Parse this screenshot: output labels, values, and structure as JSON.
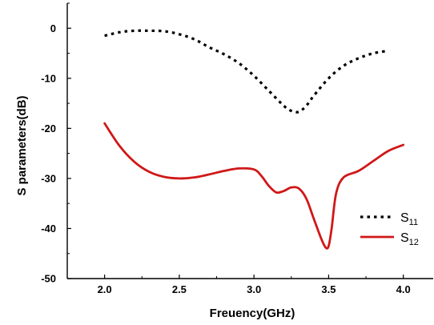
{
  "chart_data": {
    "type": "line",
    "xlabel": "Freuency(GHz)",
    "ylabel": "S parameters(dB)",
    "xlim": [
      1.75,
      4.2
    ],
    "ylim": [
      -50,
      5
    ],
    "x_ticks": [
      2.0,
      2.5,
      3.0,
      3.5,
      4.0
    ],
    "x_tick_labels": [
      "2.0",
      "2.5",
      "3.0",
      "3.5",
      "4.0"
    ],
    "y_ticks": [
      0,
      -10,
      -20,
      -30,
      -40,
      -50
    ],
    "y_tick_labels": [
      "0",
      "-10",
      "-20",
      "-30",
      "-40",
      "-50"
    ],
    "grid": false,
    "legend_position": "bottom-right",
    "series": [
      {
        "name": "S11",
        "legend_main": "S",
        "legend_sub": "11",
        "style": "dotted",
        "color": "#000000",
        "x": [
          2.0,
          2.1,
          2.2,
          2.3,
          2.4,
          2.5,
          2.6,
          2.7,
          2.8,
          2.9,
          3.0,
          3.1,
          3.2,
          3.25,
          3.3,
          3.35,
          3.4,
          3.5,
          3.6,
          3.7,
          3.8,
          3.9
        ],
        "y": [
          -1.5,
          -0.8,
          -0.5,
          -0.5,
          -0.6,
          -1.2,
          -2.2,
          -3.8,
          -5.2,
          -7.0,
          -9.5,
          -12.5,
          -15.5,
          -16.5,
          -16.7,
          -15.5,
          -13.5,
          -10.0,
          -7.5,
          -6.0,
          -5.0,
          -4.5
        ]
      },
      {
        "name": "S12",
        "legend_main": "S",
        "legend_sub": "12",
        "style": "solid",
        "color": "#d01818",
        "x": [
          2.0,
          2.1,
          2.2,
          2.3,
          2.4,
          2.5,
          2.6,
          2.7,
          2.8,
          2.9,
          3.0,
          3.05,
          3.1,
          3.15,
          3.2,
          3.25,
          3.3,
          3.35,
          3.4,
          3.45,
          3.48,
          3.5,
          3.52,
          3.55,
          3.6,
          3.7,
          3.8,
          3.9,
          4.0
        ],
        "y": [
          -19,
          -23.5,
          -26.7,
          -28.7,
          -29.7,
          -30.0,
          -29.8,
          -29.2,
          -28.5,
          -28.0,
          -28.2,
          -29.5,
          -31.5,
          -32.8,
          -32.5,
          -31.8,
          -32.0,
          -34.0,
          -38.0,
          -42.0,
          -43.8,
          -43.5,
          -40.0,
          -33.0,
          -29.8,
          -28.5,
          -26.5,
          -24.5,
          -23.3
        ]
      }
    ]
  }
}
